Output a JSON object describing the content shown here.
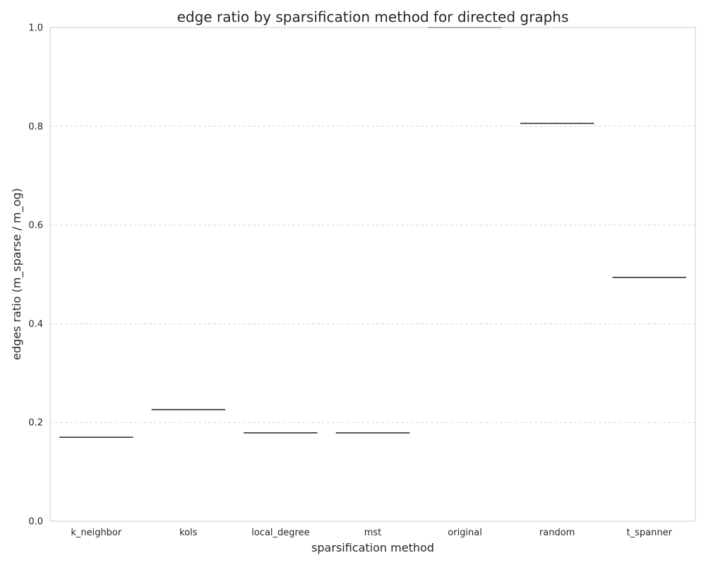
{
  "chart_data": {
    "type": "box",
    "title": "edge ratio by sparsification method for directed graphs",
    "xlabel": "sparsification method",
    "ylabel": "edges ratio (m_sparse / m_og)",
    "categories": [
      "k_neighbor",
      "kols",
      "local_degree",
      "mst",
      "original",
      "random",
      "t_spanner"
    ],
    "values": [
      0.17,
      0.226,
      0.179,
      0.179,
      1.0,
      0.806,
      0.494
    ],
    "ylim": [
      0,
      1
    ],
    "yticks": [
      0.0,
      0.2,
      0.4,
      0.6,
      0.8,
      1.0
    ],
    "ytick_labels": [
      "0.0",
      "0.2",
      "0.4",
      "0.6",
      "0.8",
      "1.0"
    ],
    "grid": "horizontal dashed",
    "colors": {
      "box_line": "#262626",
      "original_line": "#999999",
      "grid": "#d9d9d9",
      "frame": "#cccccc"
    }
  }
}
